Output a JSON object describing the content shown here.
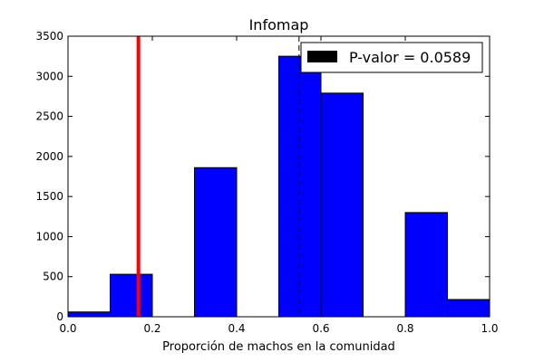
{
  "chart_data": {
    "type": "bar",
    "title": "Infomap",
    "xlabel": "Proporción de machos en la comunidad",
    "ylabel": "",
    "xlim": [
      0,
      1
    ],
    "ylim": [
      0,
      3500
    ],
    "xticks": [
      0.0,
      0.2,
      0.4,
      0.6,
      0.8,
      1.0
    ],
    "xtick_labels": [
      "0.0",
      "0.2",
      "0.4",
      "0.6",
      "0.8",
      "1.0"
    ],
    "yticks": [
      0,
      500,
      1000,
      1500,
      2000,
      2500,
      3000,
      3500
    ],
    "ytick_labels": [
      "0",
      "500",
      "1000",
      "1500",
      "2000",
      "2500",
      "3000",
      "3500"
    ],
    "bins": [
      {
        "start": 0.0,
        "end": 0.1,
        "value": 60
      },
      {
        "start": 0.1,
        "end": 0.2,
        "value": 530
      },
      {
        "start": 0.2,
        "end": 0.3,
        "value": 0
      },
      {
        "start": 0.3,
        "end": 0.4,
        "value": 1860
      },
      {
        "start": 0.4,
        "end": 0.5,
        "value": 0
      },
      {
        "start": 0.5,
        "end": 0.6,
        "value": 3250
      },
      {
        "start": 0.6,
        "end": 0.7,
        "value": 2790
      },
      {
        "start": 0.7,
        "end": 0.8,
        "value": 0
      },
      {
        "start": 0.8,
        "end": 0.9,
        "value": 1300
      },
      {
        "start": 0.9,
        "end": 1.0,
        "value": 215
      }
    ],
    "observed_line": {
      "x": 0.167,
      "color": "#ff0000"
    },
    "mean_line": {
      "x": 0.548,
      "color": "#000000",
      "style": "dashed"
    },
    "bar_color": "#0000ff",
    "grid": false,
    "legend": {
      "placement": "top-right",
      "entries": [
        {
          "label": "P-valor = 0.0589",
          "color": "#000000"
        }
      ]
    }
  }
}
